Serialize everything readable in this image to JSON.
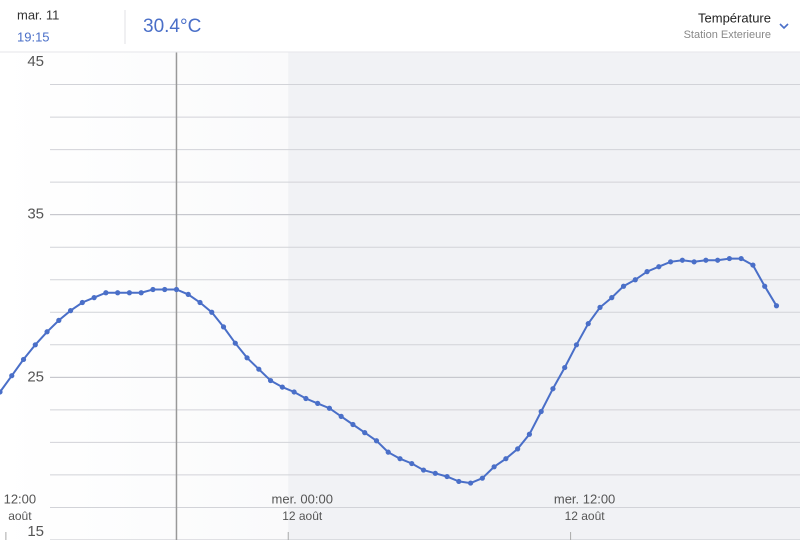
{
  "header": {
    "date": "mar. 11",
    "time": "19:15",
    "current": "30.4°C",
    "metric": "Température",
    "station": "Station Exterieure"
  },
  "chart_data": {
    "type": "line",
    "color": "#4a6fc8",
    "x": [
      -0.25,
      0.25,
      0.75,
      1.25,
      1.75,
      2.25,
      2.75,
      3.25,
      3.75,
      4.25,
      4.75,
      5.25,
      5.75,
      6.25,
      6.75,
      7.25,
      7.75,
      8.25,
      8.75,
      9.25,
      9.75,
      10.25,
      10.75,
      11.25,
      11.75,
      12.25,
      12.75,
      13.25,
      13.75,
      14.25,
      14.75,
      15.25,
      15.75,
      16.25,
      16.75,
      17.25,
      17.75,
      18.25,
      18.75,
      19.25,
      19.75,
      20.25,
      20.75,
      21.25,
      21.75,
      22.25,
      22.75,
      23.25,
      23.75,
      24.25,
      24.75,
      25.25,
      25.75,
      26.25,
      26.75,
      27.25,
      27.75,
      28.25,
      28.75,
      29.25,
      29.75,
      30.25,
      30.75,
      31.25,
      31.75,
      32.25,
      32.75
    ],
    "values": [
      24.1,
      25.1,
      26.1,
      27.0,
      27.8,
      28.5,
      29.1,
      29.6,
      29.9,
      30.2,
      30.2,
      30.2,
      30.2,
      30.4,
      30.4,
      30.4,
      30.1,
      29.6,
      29.0,
      28.1,
      27.1,
      26.2,
      25.5,
      24.8,
      24.4,
      24.1,
      23.7,
      23.4,
      23.1,
      22.6,
      22.1,
      21.6,
      21.1,
      20.4,
      20.0,
      19.7,
      19.3,
      19.1,
      18.9,
      18.6,
      18.5,
      18.8,
      19.5,
      20.0,
      20.6,
      21.5,
      22.9,
      24.3,
      25.6,
      27.0,
      28.3,
      29.3,
      29.9,
      30.6,
      31.0,
      31.5,
      31.8,
      32.1,
      32.2,
      32.1,
      32.2,
      32.2,
      32.3,
      32.3,
      31.9,
      30.6,
      29.4
    ],
    "xlim": [
      -0.25,
      33.75
    ],
    "xticks": [
      {
        "value": 0,
        "label": "12:00",
        "sublabel": "août"
      },
      {
        "value": 12,
        "label": "mer. 00:00",
        "sublabel": "12 août"
      },
      {
        "value": 24,
        "label": "mer. 12:00",
        "sublabel": "12 août"
      }
    ],
    "ylim": [
      15,
      45
    ],
    "yticks": [
      15,
      25,
      35,
      45
    ],
    "ygrid": [
      17,
      19,
      21,
      23,
      25,
      27,
      29,
      31,
      33,
      35,
      37,
      39,
      41,
      43
    ],
    "cursor_x": 7.25,
    "shade_from": 12,
    "grid": true
  }
}
